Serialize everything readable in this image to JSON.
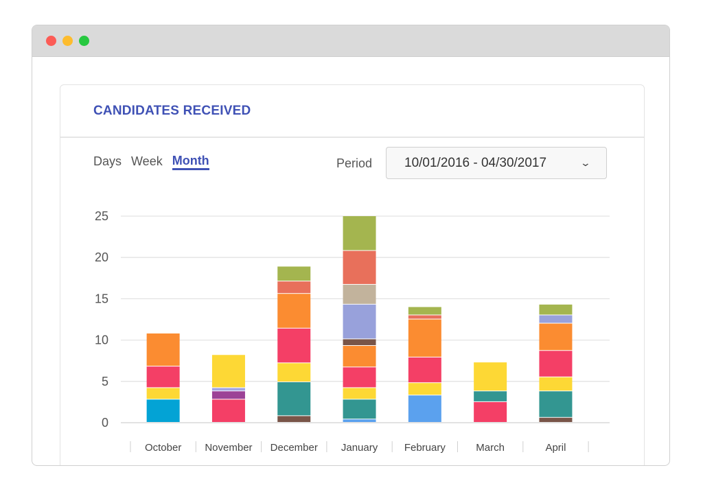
{
  "window": {
    "controls": [
      "close",
      "minimize",
      "maximize"
    ]
  },
  "card": {
    "title": "CANDIDATES RECEIVED"
  },
  "tabs": [
    {
      "label": "Days",
      "active": false
    },
    {
      "label": "Week",
      "active": false
    },
    {
      "label": "Month",
      "active": true
    }
  ],
  "period": {
    "label": "Period",
    "value": "10/01/2016 - 04/30/2017",
    "icon": "chevron-down-icon"
  },
  "colors": {
    "accent": "#3f51b5",
    "close": "#fc5c56",
    "minimize": "#fdbc2e",
    "maximize": "#27c840",
    "segments": {
      "blue": "#5ba1ee",
      "cyan": "#03a3d5",
      "brown": "#795548",
      "teal": "#339691",
      "yellow": "#fdd835",
      "red": "#f43f66",
      "purple": "#9c4296",
      "lavender": "#a2a5e4",
      "orange": "#fb8c31",
      "periwinkle": "#98a1db",
      "tan": "#c2b39c",
      "salmon": "#e8705b",
      "olive": "#a4b54f"
    }
  },
  "chart_data": {
    "type": "bar",
    "stacked": true,
    "categories": [
      "October",
      "November",
      "December",
      "January",
      "February",
      "March",
      "April"
    ],
    "yticks": [
      0,
      5,
      10,
      15,
      20,
      25
    ],
    "ylim": [
      0,
      25
    ],
    "grid": true,
    "stacks": [
      [
        {
          "value": 2.8,
          "color": "cyan"
        },
        {
          "value": 1.4,
          "color": "yellow"
        },
        {
          "value": 2.6,
          "color": "red"
        },
        {
          "value": 4.0,
          "color": "orange"
        }
      ],
      [
        {
          "value": 2.8,
          "color": "red"
        },
        {
          "value": 1.0,
          "color": "purple"
        },
        {
          "value": 0.4,
          "color": "lavender"
        },
        {
          "value": 4.0,
          "color": "yellow"
        }
      ],
      [
        {
          "value": 0.8,
          "color": "brown"
        },
        {
          "value": 4.1,
          "color": "teal"
        },
        {
          "value": 2.3,
          "color": "yellow"
        },
        {
          "value": 4.2,
          "color": "red"
        },
        {
          "value": 4.2,
          "color": "orange"
        },
        {
          "value": 1.5,
          "color": "salmon"
        },
        {
          "value": 1.8,
          "color": "olive"
        }
      ],
      [
        {
          "value": 0.4,
          "color": "blue"
        },
        {
          "value": 2.4,
          "color": "teal"
        },
        {
          "value": 1.4,
          "color": "yellow"
        },
        {
          "value": 2.5,
          "color": "red"
        },
        {
          "value": 2.6,
          "color": "orange"
        },
        {
          "value": 0.8,
          "color": "brown"
        },
        {
          "value": 4.2,
          "color": "periwinkle"
        },
        {
          "value": 2.4,
          "color": "tan"
        },
        {
          "value": 4.1,
          "color": "salmon"
        },
        {
          "value": 4.2,
          "color": "olive"
        }
      ],
      [
        {
          "value": 3.3,
          "color": "blue"
        },
        {
          "value": 1.5,
          "color": "yellow"
        },
        {
          "value": 3.1,
          "color": "red"
        },
        {
          "value": 4.6,
          "color": "orange"
        },
        {
          "value": 0.5,
          "color": "salmon"
        },
        {
          "value": 1.0,
          "color": "olive"
        }
      ],
      [
        {
          "value": 2.5,
          "color": "red"
        },
        {
          "value": 1.3,
          "color": "teal"
        },
        {
          "value": 3.5,
          "color": "yellow"
        }
      ],
      [
        {
          "value": 0.6,
          "color": "brown"
        },
        {
          "value": 3.2,
          "color": "teal"
        },
        {
          "value": 1.7,
          "color": "yellow"
        },
        {
          "value": 3.2,
          "color": "red"
        },
        {
          "value": 3.3,
          "color": "orange"
        },
        {
          "value": 1.0,
          "color": "periwinkle"
        },
        {
          "value": 1.3,
          "color": "olive"
        }
      ]
    ]
  }
}
